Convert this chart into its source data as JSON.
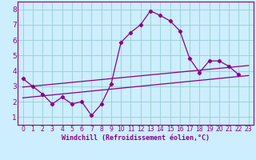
{
  "xlabel": "Windchill (Refroidissement éolien,°C)",
  "background_color": "#cceeff",
  "grid_color": "#99cccc",
  "line_color": "#880088",
  "xlim": [
    -0.5,
    23.5
  ],
  "ylim": [
    0.5,
    8.5
  ],
  "xticks": [
    0,
    1,
    2,
    3,
    4,
    5,
    6,
    7,
    8,
    9,
    10,
    11,
    12,
    13,
    14,
    15,
    16,
    17,
    18,
    19,
    20,
    21,
    22,
    23
  ],
  "yticks": [
    1,
    2,
    3,
    4,
    5,
    6,
    7,
    8
  ],
  "series1_x": [
    0,
    1,
    2,
    3,
    4,
    5,
    6,
    7,
    8,
    9,
    10,
    11,
    12,
    13,
    14,
    15,
    16,
    17,
    18,
    19,
    20,
    21,
    22
  ],
  "series1_y": [
    3.5,
    3.0,
    2.5,
    1.85,
    2.3,
    1.85,
    2.0,
    1.1,
    1.85,
    3.15,
    5.85,
    6.5,
    7.0,
    7.9,
    7.6,
    7.25,
    6.6,
    4.8,
    3.9,
    4.65,
    4.65,
    4.3,
    3.75
  ],
  "trend1_x": [
    0,
    23
  ],
  "trend1_y": [
    2.25,
    3.7
  ],
  "trend2_x": [
    0,
    23
  ],
  "trend2_y": [
    2.95,
    4.35
  ]
}
